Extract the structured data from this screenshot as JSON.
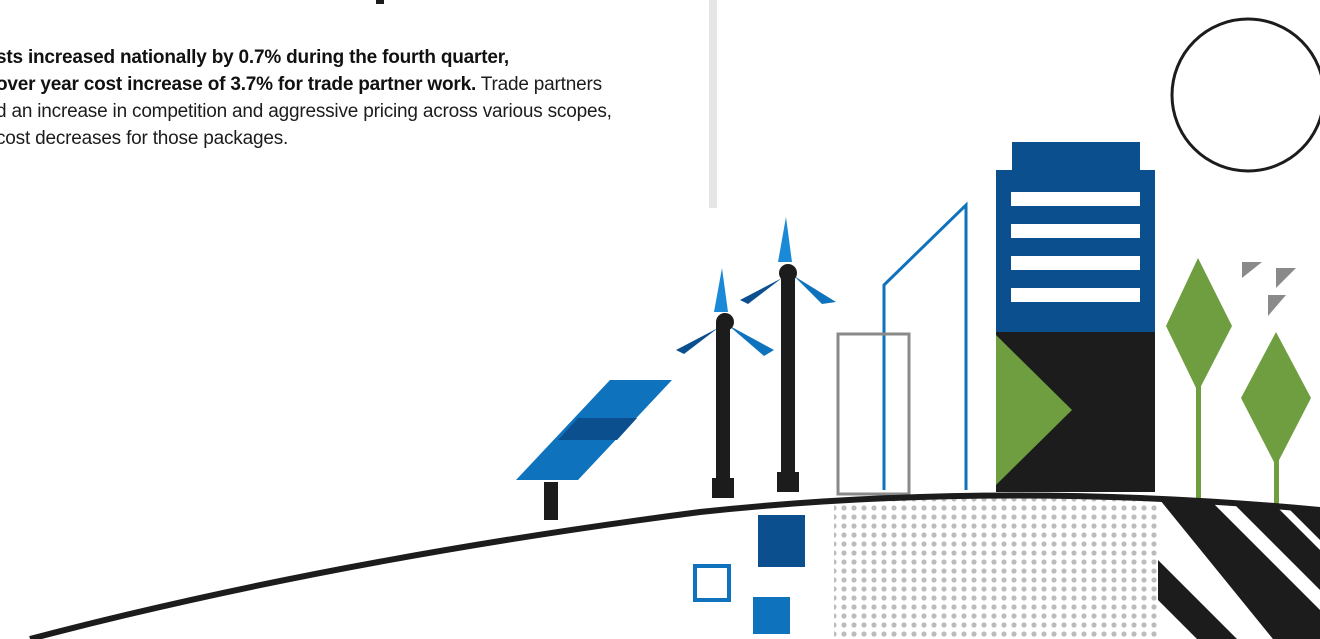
{
  "article": {
    "bold_line_1": "sts increased nationally by 0.7% during the fourth quarter,",
    "bold_line_2": "over year cost increase of 3.7% for trade partner work.",
    "regular_line_2": " Trade partners",
    "regular_line_3": "d an increase in competition and aggressive pricing across various scopes,",
    "regular_line_4": "cost decreases for those packages."
  },
  "illustration": {
    "colors": {
      "blue_dark": "#0b4f8f",
      "blue_mid": "#0e72bd",
      "blue_light": "#1a8ad8",
      "green": "#6e9e3f",
      "black": "#1c1c1c",
      "gray": "#888888",
      "gray_light": "#bcbcbc"
    }
  }
}
